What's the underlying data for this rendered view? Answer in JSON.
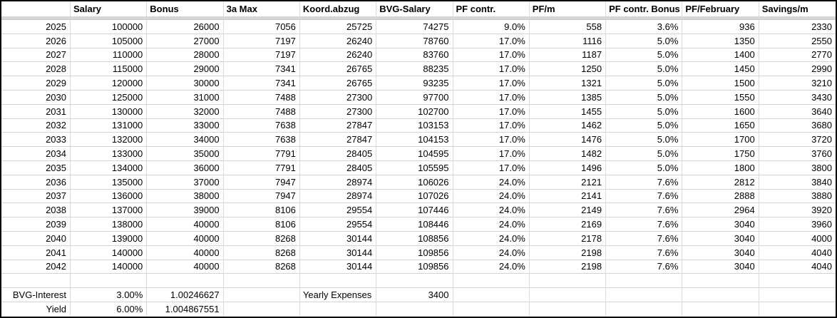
{
  "sheet": {
    "columns": [
      "",
      "Salary",
      "Bonus",
      "3a Max",
      "Koord.abzug",
      "BVG-Salary",
      "PF contr.",
      "PF/m",
      "PF contr. Bonus",
      "PF/February",
      "Savings/m"
    ],
    "rows": [
      [
        "2025",
        "100000",
        "26000",
        "7056",
        "25725",
        "74275",
        "9.0%",
        "558",
        "3.6%",
        "936",
        "2330"
      ],
      [
        "2026",
        "105000",
        "27000",
        "7197",
        "26240",
        "78760",
        "17.0%",
        "1116",
        "5.0%",
        "1350",
        "2550"
      ],
      [
        "2027",
        "110000",
        "28000",
        "7197",
        "26240",
        "83760",
        "17.0%",
        "1187",
        "5.0%",
        "1400",
        "2770"
      ],
      [
        "2028",
        "115000",
        "29000",
        "7341",
        "26765",
        "88235",
        "17.0%",
        "1250",
        "5.0%",
        "1450",
        "2990"
      ],
      [
        "2029",
        "120000",
        "30000",
        "7341",
        "26765",
        "93235",
        "17.0%",
        "1321",
        "5.0%",
        "1500",
        "3210"
      ],
      [
        "2030",
        "125000",
        "31000",
        "7488",
        "27300",
        "97700",
        "17.0%",
        "1385",
        "5.0%",
        "1550",
        "3430"
      ],
      [
        "2031",
        "130000",
        "32000",
        "7488",
        "27300",
        "102700",
        "17.0%",
        "1455",
        "5.0%",
        "1600",
        "3640"
      ],
      [
        "2032",
        "131000",
        "33000",
        "7638",
        "27847",
        "103153",
        "17.0%",
        "1462",
        "5.0%",
        "1650",
        "3680"
      ],
      [
        "2033",
        "132000",
        "34000",
        "7638",
        "27847",
        "104153",
        "17.0%",
        "1476",
        "5.0%",
        "1700",
        "3720"
      ],
      [
        "2034",
        "133000",
        "35000",
        "7791",
        "28405",
        "104595",
        "17.0%",
        "1482",
        "5.0%",
        "1750",
        "3760"
      ],
      [
        "2035",
        "134000",
        "36000",
        "7791",
        "28405",
        "105595",
        "17.0%",
        "1496",
        "5.0%",
        "1800",
        "3800"
      ],
      [
        "2036",
        "135000",
        "37000",
        "7947",
        "28974",
        "106026",
        "24.0%",
        "2121",
        "7.6%",
        "2812",
        "3840"
      ],
      [
        "2037",
        "136000",
        "38000",
        "7947",
        "28974",
        "107026",
        "24.0%",
        "2141",
        "7.6%",
        "2888",
        "3880"
      ],
      [
        "2038",
        "137000",
        "39000",
        "8106",
        "29554",
        "107446",
        "24.0%",
        "2149",
        "7.6%",
        "2964",
        "3920"
      ],
      [
        "2039",
        "138000",
        "40000",
        "8106",
        "29554",
        "108446",
        "24.0%",
        "2169",
        "7.6%",
        "3040",
        "3960"
      ],
      [
        "2040",
        "139000",
        "40000",
        "8268",
        "30144",
        "108856",
        "24.0%",
        "2178",
        "7.6%",
        "3040",
        "4000"
      ],
      [
        "2041",
        "140000",
        "40000",
        "8268",
        "30144",
        "109856",
        "24.0%",
        "2198",
        "7.6%",
        "3040",
        "4040"
      ],
      [
        "2042",
        "140000",
        "40000",
        "8268",
        "30144",
        "109856",
        "24.0%",
        "2198",
        "7.6%",
        "3040",
        "4040"
      ]
    ],
    "footer": {
      "bvg_interest": {
        "label": "BVG-Interest",
        "rate": "3.00%",
        "factor": "1.00246627"
      },
      "yield": {
        "label": "Yield",
        "rate": "6.00%",
        "factor": "1.004867551"
      },
      "yearly_expenses": {
        "label": "Yearly Expenses",
        "value": "3400"
      }
    },
    "colors": {
      "table_border": "#000000",
      "grid_line": "#d4d4d4",
      "header_separator": "#d6d6d6",
      "text": "#000000",
      "background": "#ffffff"
    }
  }
}
